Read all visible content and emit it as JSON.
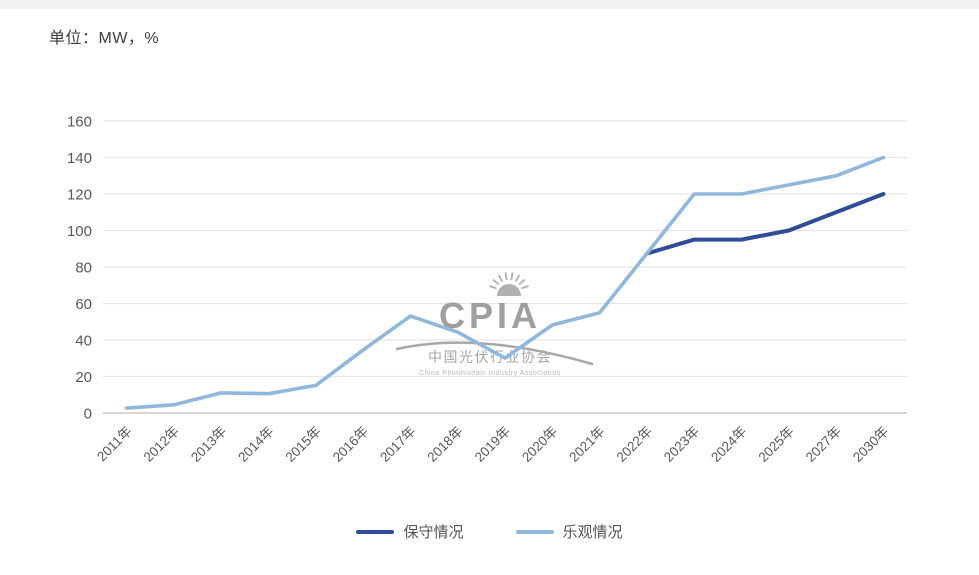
{
  "header": {
    "unit_label": "单位：MW，%"
  },
  "watermark": {
    "acronym": "CPIA",
    "cn_name": "中国光伏行业协会",
    "en_name": "China Photovoltaic Industry Association",
    "color": "#8f8f8f"
  },
  "legend": {
    "items": [
      {
        "label": "保守情况",
        "color": "#2f4c99"
      },
      {
        "label": "乐观情况",
        "color": "#8fb8dc"
      }
    ]
  },
  "chart_data": {
    "type": "line",
    "categories": [
      "2011年",
      "2012年",
      "2013年",
      "2014年",
      "2015年",
      "2016年",
      "2017年",
      "2018年",
      "2019年",
      "2020年",
      "2021年",
      "2022年",
      "2023年",
      "2024年",
      "2025年",
      "2027年",
      "2030年"
    ],
    "series": [
      {
        "name": "保守情况",
        "color": "#2f4c99",
        "values": [
          null,
          null,
          null,
          null,
          null,
          null,
          null,
          null,
          null,
          null,
          null,
          87.4,
          95,
          95,
          100,
          110,
          120
        ]
      },
      {
        "name": "乐观情况",
        "color": "#8fb8dc",
        "values": [
          2.7,
          4.5,
          11,
          10.6,
          15.1,
          34.5,
          53.1,
          44.3,
          30.1,
          48.2,
          54.9,
          87.4,
          120,
          120,
          125,
          130,
          140
        ]
      }
    ],
    "title": "",
    "xlabel": "",
    "ylabel": "",
    "ylim": [
      0,
      160
    ],
    "ytick_step": 20,
    "yticks": [
      0,
      20,
      40,
      60,
      80,
      100,
      120,
      140,
      160
    ],
    "grid": true,
    "legend_position": "bottom",
    "grid_color": "#e5e5e5",
    "axis_color": "#c9c9c9",
    "tick_text_color": "#595959"
  }
}
